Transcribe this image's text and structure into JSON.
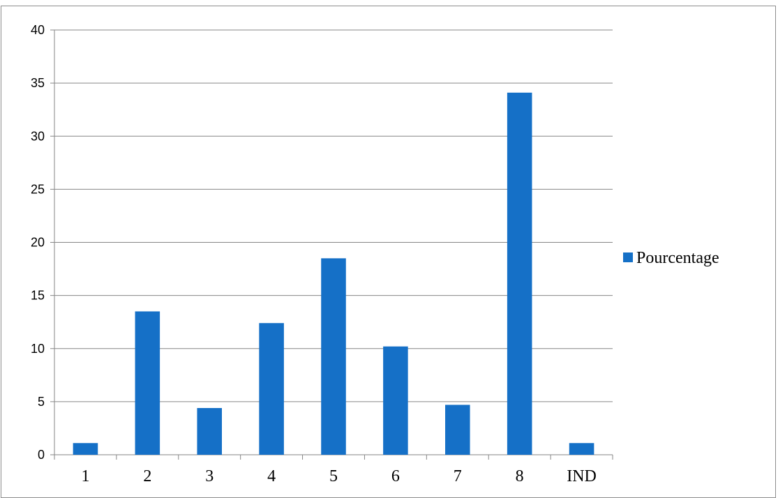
{
  "chart_data": {
    "type": "bar",
    "categories": [
      "1",
      "2",
      "3",
      "4",
      "5",
      "6",
      "7",
      "8",
      "IND"
    ],
    "series": [
      {
        "name": "Pourcentage",
        "values": [
          1.1,
          13.5,
          4.4,
          12.4,
          18.5,
          10.2,
          4.7,
          34.1,
          1.1
        ],
        "color": "#1570C7"
      }
    ],
    "ylim": [
      0,
      40
    ],
    "yticks": [
      "0",
      "5",
      "10",
      "15",
      "20",
      "25",
      "30",
      "35",
      "40"
    ],
    "grid": true,
    "legend_position": "right"
  }
}
